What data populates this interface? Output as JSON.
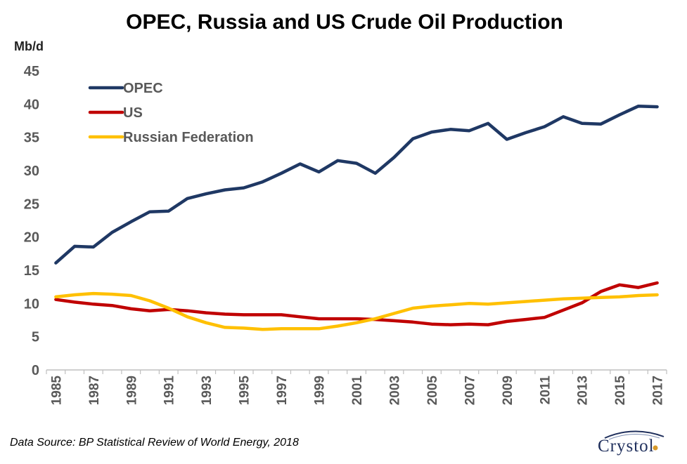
{
  "chart_data": {
    "type": "line",
    "title": "OPEC, Russia and US Crude Oil Production",
    "ylabel": "Mb/d",
    "xlabel": "",
    "ylim": [
      0,
      45
    ],
    "yticks": [
      0,
      5,
      10,
      15,
      20,
      25,
      30,
      35,
      40,
      45
    ],
    "x": [
      1985,
      1986,
      1987,
      1988,
      1989,
      1990,
      1991,
      1992,
      1993,
      1994,
      1995,
      1996,
      1997,
      1998,
      1999,
      2000,
      2001,
      2002,
      2003,
      2004,
      2005,
      2006,
      2007,
      2008,
      2009,
      2010,
      2011,
      2012,
      2013,
      2014,
      2015,
      2016,
      2017
    ],
    "xtick_labels": [
      "1985",
      "1987",
      "1989",
      "1991",
      "1993",
      "1995",
      "1997",
      "1999",
      "2001",
      "2003",
      "2005",
      "2007",
      "2009",
      "2011",
      "2013",
      "2015",
      "2017"
    ],
    "grid": false,
    "legend_position": "top-left",
    "series": [
      {
        "name": "OPEC",
        "color": "#1f3864",
        "values": [
          16.1,
          18.6,
          18.5,
          20.7,
          22.3,
          23.8,
          23.9,
          25.8,
          26.5,
          27.1,
          27.4,
          28.3,
          29.6,
          31.0,
          29.8,
          31.5,
          31.1,
          29.6,
          32.0,
          34.8,
          35.8,
          36.2,
          36.0,
          37.1,
          34.7,
          35.7,
          36.6,
          38.1,
          37.1,
          37.0,
          38.4,
          39.7,
          39.6
        ]
      },
      {
        "name": "US",
        "color": "#c00000",
        "values": [
          10.6,
          10.2,
          9.9,
          9.7,
          9.2,
          8.9,
          9.1,
          8.9,
          8.6,
          8.4,
          8.3,
          8.3,
          8.3,
          8.0,
          7.7,
          7.7,
          7.7,
          7.6,
          7.4,
          7.2,
          6.9,
          6.8,
          6.9,
          6.8,
          7.3,
          7.6,
          7.9,
          9.0,
          10.1,
          11.8,
          12.8,
          12.4,
          13.1
        ]
      },
      {
        "name": "Russian Federation",
        "color": "#ffc000",
        "values": [
          11.0,
          11.3,
          11.5,
          11.4,
          11.2,
          10.4,
          9.3,
          8.0,
          7.1,
          6.4,
          6.3,
          6.1,
          6.2,
          6.2,
          6.2,
          6.6,
          7.1,
          7.7,
          8.5,
          9.3,
          9.6,
          9.8,
          10.0,
          9.9,
          10.1,
          10.3,
          10.5,
          10.7,
          10.8,
          10.9,
          11.0,
          11.2,
          11.3
        ]
      }
    ]
  },
  "footer": {
    "source": "Data Source: BP Statistical Review of World Energy, 2018",
    "logo_text": "Crystol"
  }
}
